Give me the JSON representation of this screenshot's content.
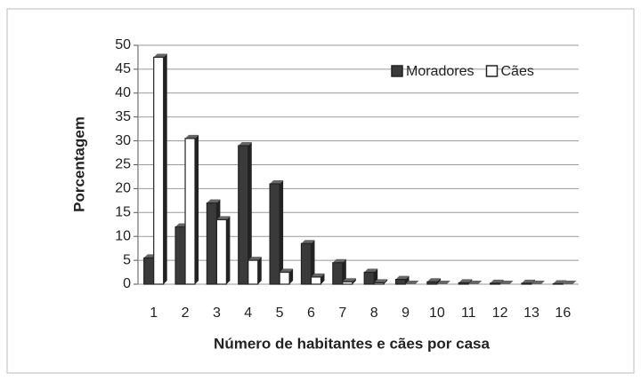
{
  "chart_data": {
    "type": "bar",
    "x_label": "Número de habitantes e cães por casa",
    "y_label": "Porcentagem",
    "categories": [
      "1",
      "2",
      "3",
      "4",
      "5",
      "6",
      "7",
      "8",
      "9",
      "10",
      "11",
      "12",
      "13",
      "16"
    ],
    "series": [
      {
        "name": "Moradores",
        "color": "#3a3a3a",
        "values": [
          5.5,
          12,
          17,
          29,
          21,
          8.5,
          4.5,
          2.5,
          1,
          0.5,
          0.3,
          0.2,
          0.2,
          0.1
        ]
      },
      {
        "name": "Cães",
        "color": "#ffffff",
        "values": [
          47.5,
          30.5,
          13.5,
          5,
          2.5,
          1.5,
          0.5,
          0.3,
          0,
          0,
          0,
          0,
          0,
          0
        ]
      }
    ],
    "ylim": [
      0,
      50
    ],
    "yticks": [
      0,
      5,
      10,
      15,
      20,
      25,
      30,
      35,
      40,
      45,
      50
    ],
    "grid": true,
    "legend": "top-right"
  }
}
